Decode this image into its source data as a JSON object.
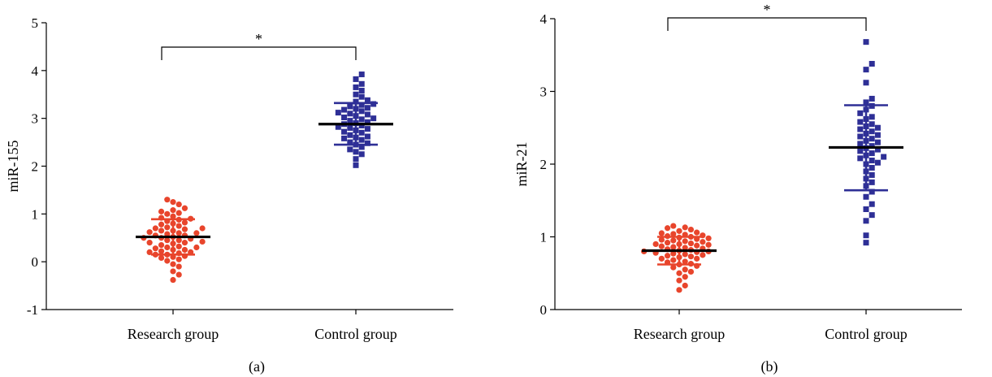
{
  "colors": {
    "research": "#e8452c",
    "control": "#2e2f96",
    "mean_line": "#000000"
  },
  "chart_data": [
    {
      "type": "scatter",
      "panel_label": "(a)",
      "ylabel": "miR-155",
      "ylim": [
        -1,
        5
      ],
      "yticks": [
        -1,
        0,
        1,
        2,
        3,
        4,
        5
      ],
      "categories": [
        "Research group",
        "Control group"
      ],
      "significance": "*",
      "series": [
        {
          "name": "Research group",
          "marker": "circle",
          "mean": 0.52,
          "sd_low": 0.15,
          "sd_high": 0.89,
          "values": [
            -0.38,
            -0.27,
            -0.2,
            -0.1,
            -0.05,
            0.02,
            0.05,
            0.08,
            0.1,
            0.12,
            0.15,
            0.15,
            0.18,
            0.2,
            0.2,
            0.22,
            0.25,
            0.25,
            0.28,
            0.3,
            0.3,
            0.32,
            0.35,
            0.38,
            0.4,
            0.4,
            0.42,
            0.45,
            0.45,
            0.48,
            0.5,
            0.5,
            0.52,
            0.55,
            0.55,
            0.58,
            0.6,
            0.6,
            0.62,
            0.65,
            0.65,
            0.68,
            0.7,
            0.7,
            0.72,
            0.75,
            0.78,
            0.8,
            0.82,
            0.85,
            0.88,
            0.9,
            0.92,
            0.95,
            1.0,
            1.02,
            1.05,
            1.08,
            1.12,
            1.2,
            1.25,
            1.3
          ]
        },
        {
          "name": "Control group",
          "marker": "square",
          "mean": 2.88,
          "sd_low": 2.45,
          "sd_high": 3.32,
          "values": [
            2.02,
            2.15,
            2.25,
            2.3,
            2.35,
            2.4,
            2.45,
            2.48,
            2.5,
            2.55,
            2.58,
            2.6,
            2.62,
            2.65,
            2.7,
            2.72,
            2.75,
            2.78,
            2.8,
            2.82,
            2.85,
            2.88,
            2.9,
            2.92,
            2.95,
            2.98,
            3.0,
            3.02,
            3.05,
            3.08,
            3.1,
            3.12,
            3.15,
            3.18,
            3.2,
            3.22,
            3.25,
            3.28,
            3.3,
            3.35,
            3.38,
            3.45,
            3.5,
            3.58,
            3.65,
            3.72,
            3.82,
            3.92
          ]
        }
      ]
    },
    {
      "type": "scatter",
      "panel_label": "(b)",
      "ylabel": "miR-21",
      "ylim": [
        0,
        4
      ],
      "yticks": [
        0,
        1,
        2,
        3,
        4
      ],
      "categories": [
        "Research group",
        "Control group"
      ],
      "significance": "*",
      "series": [
        {
          "name": "Research group",
          "marker": "circle",
          "mean": 0.81,
          "sd_low": 0.62,
          "sd_high": 1.0,
          "values": [
            0.27,
            0.33,
            0.4,
            0.45,
            0.5,
            0.52,
            0.55,
            0.58,
            0.6,
            0.62,
            0.63,
            0.65,
            0.66,
            0.68,
            0.7,
            0.7,
            0.72,
            0.73,
            0.74,
            0.75,
            0.76,
            0.77,
            0.78,
            0.79,
            0.8,
            0.8,
            0.81,
            0.82,
            0.83,
            0.84,
            0.85,
            0.86,
            0.87,
            0.88,
            0.89,
            0.9,
            0.9,
            0.91,
            0.92,
            0.93,
            0.94,
            0.95,
            0.96,
            0.97,
            0.98,
            0.99,
            1.0,
            1.01,
            1.02,
            1.03,
            1.04,
            1.05,
            1.06,
            1.08,
            1.1,
            1.12,
            1.13,
            1.15
          ]
        },
        {
          "name": "Control group",
          "marker": "square",
          "mean": 2.23,
          "sd_low": 1.64,
          "sd_high": 2.81,
          "values": [
            0.92,
            1.02,
            1.22,
            1.3,
            1.38,
            1.45,
            1.55,
            1.62,
            1.7,
            1.75,
            1.8,
            1.85,
            1.9,
            1.95,
            2.0,
            2.02,
            2.05,
            2.08,
            2.1,
            2.12,
            2.15,
            2.18,
            2.2,
            2.22,
            2.25,
            2.28,
            2.3,
            2.32,
            2.35,
            2.38,
            2.4,
            2.42,
            2.45,
            2.48,
            2.5,
            2.52,
            2.55,
            2.58,
            2.62,
            2.65,
            2.7,
            2.75,
            2.8,
            2.85,
            2.9,
            3.12,
            3.3,
            3.38,
            3.68
          ]
        }
      ]
    }
  ]
}
